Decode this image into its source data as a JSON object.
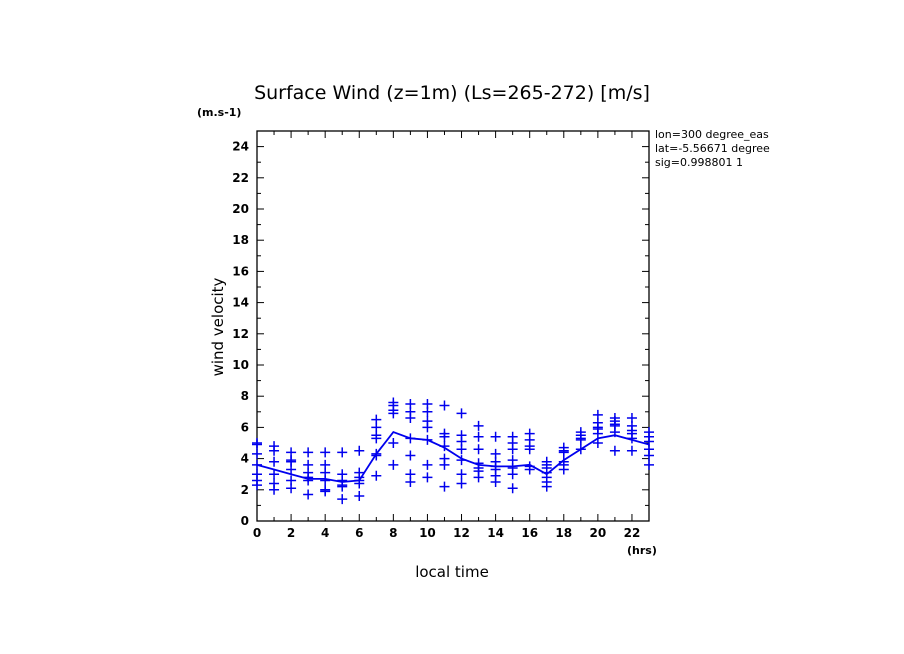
{
  "chart_data": {
    "type": "scatter",
    "title": "Surface Wind (z=1m) (Ls=265-272) [m/s]",
    "yunit": "(m.s-1)",
    "xunit": "(hrs)",
    "xlabel": "local time",
    "ylabel": "wind velocity",
    "xlim": [
      0,
      23
    ],
    "ylim": [
      0,
      25
    ],
    "xticks": [
      0,
      2,
      4,
      6,
      8,
      10,
      12,
      14,
      16,
      18,
      20,
      22
    ],
    "yticks": [
      0,
      2,
      4,
      6,
      8,
      10,
      12,
      14,
      16,
      18,
      20,
      22,
      24
    ],
    "info_lines": [
      "lon=300 degree_eas",
      "lat=-5.56671 degree",
      "sig=0.998801 1"
    ],
    "color": "#0000ee",
    "x": [
      0,
      1,
      2,
      3,
      4,
      5,
      6,
      7,
      8,
      9,
      10,
      11,
      12,
      13,
      14,
      15,
      16,
      17,
      18,
      19,
      20,
      21,
      22,
      23
    ],
    "points": [
      [
        5.0,
        4.9,
        4.3,
        3.6,
        3.0,
        2.6,
        2.3
      ],
      [
        4.8,
        4.5,
        3.8,
        3.0,
        2.4,
        2.0
      ],
      [
        4.4,
        3.9,
        3.8,
        3.3,
        2.6,
        2.1
      ],
      [
        4.4,
        3.6,
        3.1,
        2.8,
        2.6,
        1.7
      ],
      [
        4.4,
        3.6,
        3.1,
        2.6,
        2.0,
        1.9
      ],
      [
        4.4,
        3.0,
        2.6,
        2.3,
        2.2,
        1.4
      ],
      [
        4.5,
        3.1,
        2.8,
        2.6,
        2.4,
        1.6
      ],
      [
        6.5,
        6.0,
        5.5,
        5.3,
        4.3,
        4.2,
        2.9
      ],
      [
        7.6,
        7.4,
        7.1,
        6.9,
        5.0,
        3.6
      ],
      [
        7.5,
        7.0,
        6.6,
        5.3,
        4.2,
        3.0,
        2.5
      ],
      [
        7.5,
        7.0,
        6.4,
        6.0,
        5.2,
        3.6,
        2.8
      ],
      [
        7.4,
        5.6,
        5.4,
        4.8,
        4.0,
        3.6,
        2.2
      ],
      [
        6.9,
        5.5,
        5.1,
        4.6,
        3.9,
        3.0,
        2.4
      ],
      [
        6.1,
        5.4,
        4.6,
        3.7,
        3.4,
        3.2,
        2.8
      ],
      [
        5.4,
        4.3,
        3.8,
        3.5,
        3.3,
        2.9,
        2.5
      ],
      [
        5.4,
        5.0,
        4.6,
        3.9,
        3.4,
        3.0,
        2.1
      ],
      [
        5.6,
        5.2,
        4.8,
        4.6,
        3.5,
        3.3
      ],
      [
        3.8,
        3.6,
        3.4,
        3.1,
        2.8,
        2.5,
        2.2
      ],
      [
        4.7,
        4.5,
        4.4,
        3.8,
        3.6,
        3.3
      ],
      [
        5.7,
        5.5,
        5.3,
        5.2,
        4.6
      ],
      [
        6.8,
        6.3,
        6.0,
        5.9,
        5.6,
        5.0
      ],
      [
        6.6,
        6.4,
        6.2,
        6.1,
        5.7,
        4.5
      ],
      [
        6.6,
        6.1,
        5.8,
        5.6,
        5.3,
        4.5
      ],
      [
        5.7,
        5.4,
        5.1,
        4.6,
        4.2,
        3.6
      ]
    ],
    "mean": [
      3.6,
      3.3,
      3.0,
      2.7,
      2.7,
      2.5,
      2.6,
      4.3,
      5.7,
      5.3,
      5.2,
      4.7,
      4.0,
      3.6,
      3.5,
      3.5,
      3.6,
      3.0,
      3.9,
      4.6,
      5.3,
      5.5,
      5.2,
      4.9
    ]
  }
}
